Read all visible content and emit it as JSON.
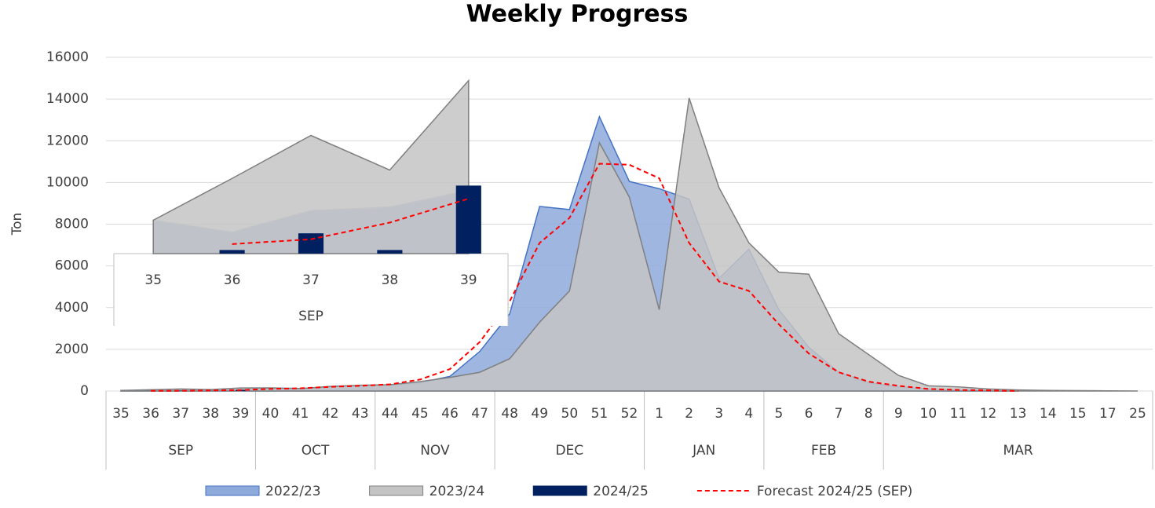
{
  "chart_data": [
    {
      "type": "combo",
      "title": "Weekly Progress",
      "y_label": "Ton",
      "categories": [
        "35",
        "36",
        "37",
        "38",
        "39",
        "40",
        "41",
        "42",
        "43",
        "44",
        "45",
        "46",
        "47",
        "48",
        "49",
        "50",
        "51",
        "52",
        "1",
        "2",
        "3",
        "4",
        "5",
        "6",
        "7",
        "8",
        "9",
        "10",
        "11",
        "12",
        "13",
        "14",
        "15",
        "17",
        "25"
      ],
      "groups": [
        {
          "name": "SEP",
          "count": 5
        },
        {
          "name": "OCT",
          "count": 4
        },
        {
          "name": "NOV",
          "count": 4
        },
        {
          "name": "DEC",
          "count": 5
        },
        {
          "name": "JAN",
          "count": 4
        },
        {
          "name": "FEB",
          "count": 4
        },
        {
          "name": "MAR",
          "count": 9
        }
      ],
      "ylim": [
        0,
        16000
      ],
      "yticks": [
        0,
        2000,
        4000,
        6000,
        8000,
        10000,
        12000,
        14000,
        16000
      ],
      "grid": true,
      "series": [
        {
          "name": "2022/23",
          "type": "area",
          "color": "#8eaadb",
          "line_color": "#4472c4",
          "values": [
            28,
            18,
            36,
            39,
            53,
            120,
            100,
            200,
            250,
            300,
            400,
            700,
            1900,
            3700,
            8850,
            8700,
            13150,
            10050,
            9700,
            9200,
            5400,
            6800,
            3900,
            2100,
            900,
            400,
            200,
            100,
            50,
            20,
            0,
            null,
            null,
            null,
            null
          ]
        },
        {
          "name": "2023/24",
          "type": "area",
          "color": "#c4c4c4",
          "line_color": "#7f7f7f",
          "values": [
            28,
            63,
            99,
            70,
            145,
            150,
            120,
            220,
            280,
            300,
            450,
            650,
            900,
            1550,
            3300,
            4800,
            11900,
            9300,
            3900,
            14050,
            9750,
            7100,
            5700,
            5600,
            2750,
            1750,
            750,
            250,
            200,
            100,
            50,
            30,
            20,
            10,
            0
          ]
        },
        {
          "name": "2024/25",
          "type": "bar",
          "color": "#002060",
          "values": [
            null,
            3,
            17,
            3,
            57,
            null,
            null,
            null,
            null,
            null,
            null,
            null,
            null,
            null,
            null,
            null,
            null,
            null,
            null,
            null,
            null,
            null,
            null,
            null,
            null,
            null,
            null,
            null,
            null,
            null,
            null,
            null,
            null,
            null,
            null
          ]
        },
        {
          "name": "Forecast 2024/25 (SEP)",
          "type": "line",
          "color": "#ff0000",
          "dashed": true,
          "values": [
            null,
            8,
            12,
            26,
            46,
            100,
            130,
            200,
            250,
            320,
            550,
            1050,
            2350,
            4300,
            7100,
            8300,
            10900,
            10850,
            10200,
            7100,
            5250,
            4800,
            3200,
            1800,
            900,
            450,
            250,
            100,
            50,
            30,
            0,
            null,
            null,
            null,
            null
          ]
        }
      ]
    },
    {
      "type": "combo",
      "categories": [
        "35",
        "36",
        "37",
        "38",
        "39"
      ],
      "groups": [
        {
          "name": "SEP",
          "count": 5
        }
      ],
      "ylim": [
        0,
        150
      ],
      "series": [
        {
          "type": "area",
          "color": "#8eaadb",
          "line_color": "#b4c3dc",
          "values": [
            28,
            18,
            36,
            39,
            53
          ]
        },
        {
          "type": "area",
          "color": "#c4c4c4",
          "line_color": "#7f7f7f",
          "values": [
            28,
            63,
            99,
            70,
            145
          ]
        },
        {
          "type": "bar",
          "color": "#002060",
          "values": [
            null,
            3,
            17,
            3,
            57
          ]
        },
        {
          "type": "line",
          "color": "#ff0000",
          "dashed": true,
          "values": [
            null,
            8,
            12,
            26,
            46
          ]
        }
      ]
    }
  ]
}
